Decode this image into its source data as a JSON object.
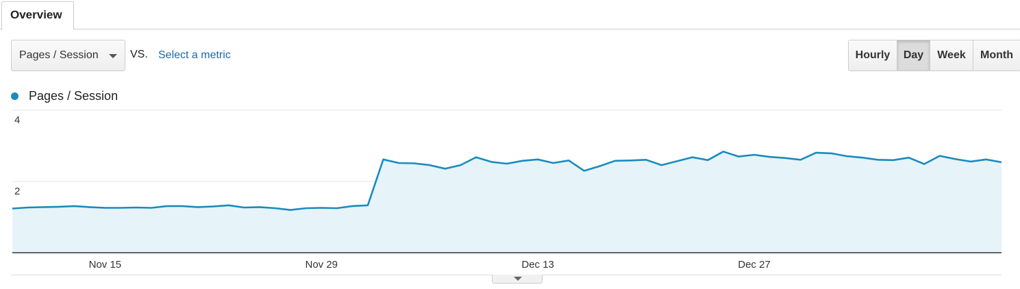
{
  "tabs": {
    "overview_label": "Overview"
  },
  "controls": {
    "metric_select": "Pages / Session",
    "vs_label": "VS.",
    "select_metric_link": "Select a metric",
    "periods": [
      {
        "label": "Hourly",
        "active": false
      },
      {
        "label": "Day",
        "active": true
      },
      {
        "label": "Week",
        "active": false
      },
      {
        "label": "Month",
        "active": false
      }
    ]
  },
  "chart_data": {
    "type": "area",
    "legend": {
      "label": "Pages / Session",
      "placement": "top-left"
    },
    "series": [
      {
        "name": "Pages / Session",
        "color": "#1a8bbd",
        "fill": "#e6f3f9",
        "values": [
          1.24,
          1.27,
          1.28,
          1.29,
          1.31,
          1.28,
          1.26,
          1.26,
          1.27,
          1.26,
          1.31,
          1.31,
          1.28,
          1.3,
          1.33,
          1.27,
          1.28,
          1.25,
          1.2,
          1.25,
          1.26,
          1.25,
          1.31,
          1.33,
          2.62,
          2.52,
          2.51,
          2.46,
          2.36,
          2.46,
          2.68,
          2.55,
          2.5,
          2.58,
          2.62,
          2.52,
          2.59,
          2.3,
          2.43,
          2.58,
          2.59,
          2.61,
          2.46,
          2.57,
          2.68,
          2.6,
          2.84,
          2.7,
          2.75,
          2.69,
          2.66,
          2.61,
          2.81,
          2.79,
          2.71,
          2.67,
          2.61,
          2.6,
          2.67,
          2.49,
          2.72,
          2.63,
          2.56,
          2.62,
          2.54
        ]
      }
    ],
    "ylim": [
      0,
      4
    ],
    "y_ticks": [
      {
        "value": 4,
        "label": "4"
      },
      {
        "value": 2,
        "label": "2"
      }
    ],
    "x_ticks": [
      {
        "index": 6,
        "label": "Nov 15"
      },
      {
        "index": 20,
        "label": "Nov 29"
      },
      {
        "index": 34,
        "label": "Dec 13"
      },
      {
        "index": 48,
        "label": "Dec 27"
      }
    ],
    "grid": true,
    "xlabel": "",
    "ylabel": ""
  }
}
